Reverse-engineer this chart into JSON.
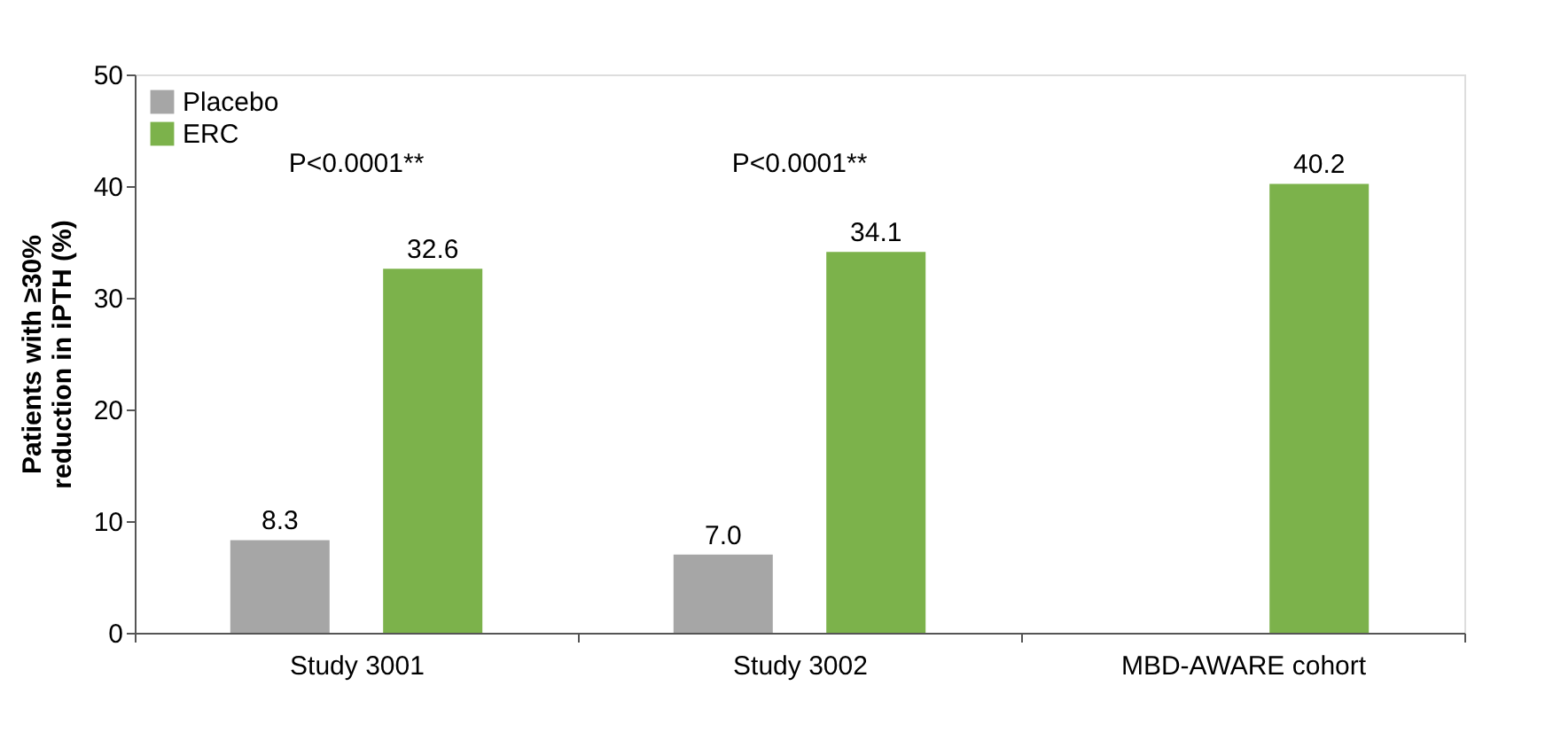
{
  "chart_data": {
    "type": "bar",
    "ylabel": "Patients with ≥30% reduction in iPTH (%)",
    "categories": [
      "Study 3001",
      "Study 3002",
      "MBD-AWARE cohort"
    ],
    "series": [
      {
        "name": "Placebo",
        "color": "#a6a6a6",
        "values": [
          8.3,
          7.0,
          null
        ],
        "value_labels": [
          "8.3",
          "7.0",
          null
        ]
      },
      {
        "name": "ERC",
        "color": "#7cb24b",
        "values": [
          32.6,
          34.1,
          40.2
        ],
        "value_labels": [
          "32.6",
          "34.1",
          "40.2"
        ]
      }
    ],
    "ylim": [
      0,
      50
    ],
    "yticks": [
      0,
      10,
      20,
      30,
      40,
      50
    ],
    "grid": false,
    "legend": "top left",
    "annotations": [
      "P<0.0001**",
      "P<0.0001**"
    ]
  }
}
